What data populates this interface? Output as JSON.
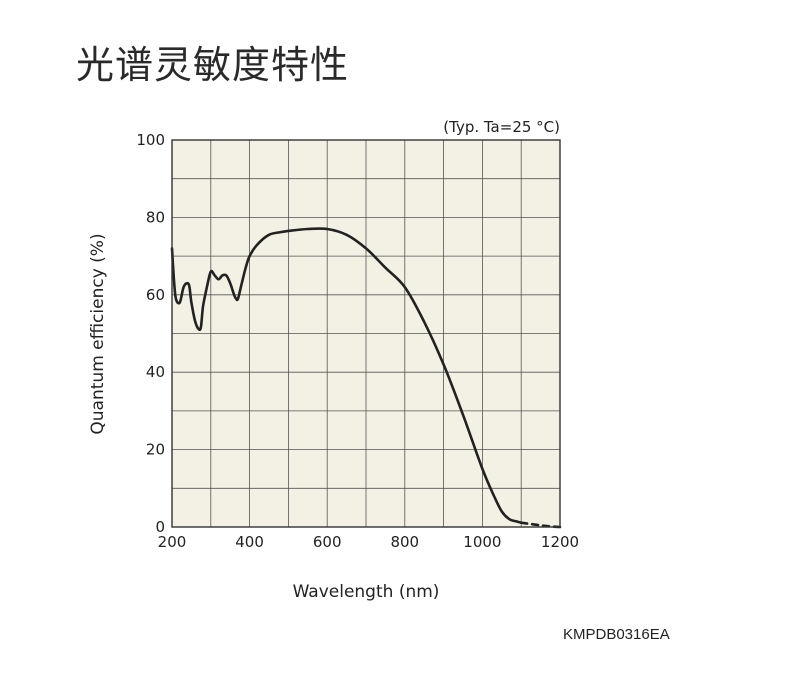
{
  "page": {
    "title": "光谱灵敏度特性",
    "doc_code": "KMPDB0316EA"
  },
  "chart_data": {
    "type": "line",
    "title": "",
    "condition": "(Typ. Ta=25 °C)",
    "xlabel": "Wavelength (nm)",
    "ylabel": "Quantum efficiency (%)",
    "xlim": [
      200,
      1200
    ],
    "ylim": [
      0,
      100
    ],
    "x_ticks": [
      200,
      400,
      600,
      800,
      1000,
      1200
    ],
    "y_ticks": [
      0,
      20,
      40,
      60,
      80,
      100
    ],
    "grid": true,
    "grid_x_step": 100,
    "grid_y_step": 10,
    "background": "#f3f1e4",
    "line_color": "#222222",
    "series": [
      {
        "style": "solid",
        "x": [
          200,
          205,
          210,
          220,
          230,
          240,
          245,
          250,
          260,
          270,
          275,
          280,
          290,
          300,
          310,
          320,
          330,
          340,
          350,
          360,
          365,
          370,
          380,
          390,
          400,
          420,
          450,
          480,
          500,
          550,
          600,
          650,
          700,
          750,
          800,
          850,
          900,
          950,
          1000,
          1030,
          1050,
          1070,
          1090,
          1100
        ],
        "y": [
          72,
          64,
          59,
          58,
          62,
          63,
          62,
          58,
          53,
          51,
          52,
          57,
          62,
          66,
          65,
          64,
          65,
          65,
          63,
          60,
          59,
          59,
          63,
          67,
          70,
          73,
          75.5,
          76.2,
          76.5,
          77,
          77,
          75.5,
          72,
          67,
          62,
          53,
          42,
          29,
          15,
          8,
          4,
          2,
          1.4,
          1.1
        ]
      },
      {
        "style": "dashed",
        "x": [
          1100,
          1130,
          1160,
          1190,
          1200
        ],
        "y": [
          1.1,
          0.7,
          0.3,
          0.05,
          0
        ]
      }
    ]
  }
}
